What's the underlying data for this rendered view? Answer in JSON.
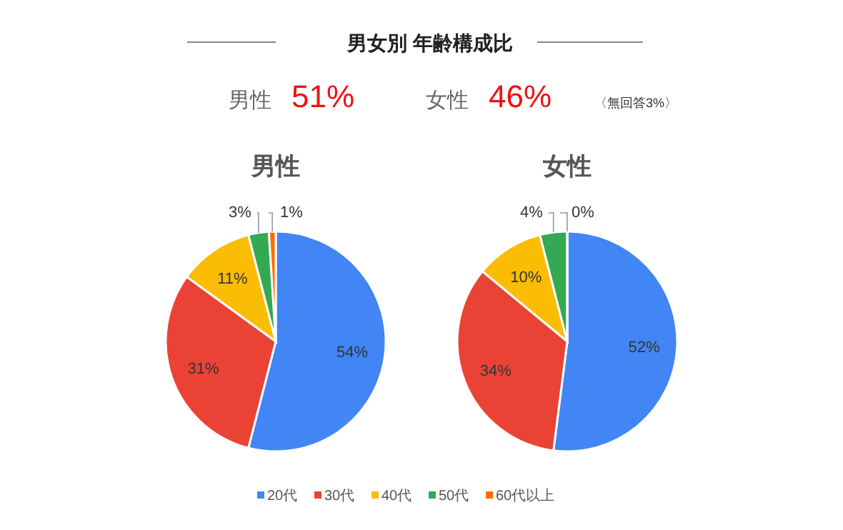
{
  "chart_data": [
    {
      "type": "pie",
      "title": "男女別  年齢構成比",
      "subtitle": "男性",
      "annotations": [
        "男性",
        "51%",
        "女性",
        "46%",
        "〈無回答3%〉"
      ],
      "categories": [
        "20代",
        "30代",
        "40代",
        "50代",
        "60代以上"
      ],
      "values": [
        54,
        31,
        11,
        3,
        1
      ],
      "value_labels": [
        "54%",
        "31%",
        "11%",
        "3%",
        "1%"
      ],
      "colors": [
        "#4285f4",
        "#ea4335",
        "#fbbc04",
        "#34a853",
        "#ff6d01"
      ],
      "legend": "bottom"
    },
    {
      "type": "pie",
      "subtitle": "女性",
      "categories": [
        null,
        null,
        null,
        null,
        null
      ],
      "values": [
        52,
        34,
        10,
        4,
        0
      ],
      "value_labels": [
        "52%",
        "34%",
        "10%",
        "4%",
        "0%"
      ],
      "colors": [
        "#4285f4",
        "#ea4335",
        "#fbbc04",
        "#34a853",
        "#ff6d01"
      ]
    }
  ]
}
